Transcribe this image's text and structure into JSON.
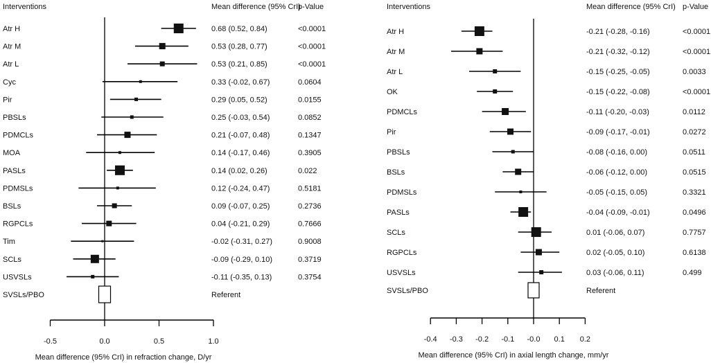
{
  "chart_data": [
    {
      "type": "forest",
      "headers": {
        "label": "Interventions",
        "estimate": "Mean difference (95% CrI)",
        "p": "p-Value"
      },
      "xlabel": "Mean difference (95% CrI) in refraction change, D/yr",
      "xlim": [
        -0.5,
        1.0
      ],
      "ticks": [
        "-0.5",
        "0.0",
        "0.5",
        "1.0"
      ],
      "tick_values": [
        -0.5,
        0.0,
        0.5,
        1.0
      ],
      "rows": [
        {
          "label": "Atr H",
          "mean": 0.68,
          "low": 0.52,
          "high": 0.84,
          "text": "0.68 (0.52, 0.84)",
          "p": "<0.0001"
        },
        {
          "label": "Atr M",
          "mean": 0.53,
          "low": 0.28,
          "high": 0.77,
          "text": "0.53 (0.28, 0.77)",
          "p": "<0.0001"
        },
        {
          "label": "Atr L",
          "mean": 0.53,
          "low": 0.21,
          "high": 0.85,
          "text": "0.53 (0.21, 0.85)",
          "p": "<0.0001"
        },
        {
          "label": "Cyc",
          "mean": 0.33,
          "low": -0.02,
          "high": 0.67,
          "text": "0.33 (-0.02, 0.67)",
          "p": "0.0604"
        },
        {
          "label": "Pir",
          "mean": 0.29,
          "low": 0.05,
          "high": 0.52,
          "text": "0.29 (0.05, 0.52)",
          "p": "0.0155"
        },
        {
          "label": "PBSLs",
          "mean": 0.25,
          "low": -0.03,
          "high": 0.54,
          "text": "0.25 (-0.03, 0.54)",
          "p": "0.0852"
        },
        {
          "label": "PDMCLs",
          "mean": 0.21,
          "low": -0.07,
          "high": 0.48,
          "text": "0.21 (-0.07, 0.48)",
          "p": "0.1347"
        },
        {
          "label": "MOA",
          "mean": 0.14,
          "low": -0.17,
          "high": 0.46,
          "text": "0.14 (-0.17, 0.46)",
          "p": "0.3905"
        },
        {
          "label": "PASLs",
          "mean": 0.14,
          "low": 0.02,
          "high": 0.26,
          "text": "0.14 (0.02, 0.26)",
          "p": "0.022"
        },
        {
          "label": "PDMSLs",
          "mean": 0.12,
          "low": -0.24,
          "high": 0.47,
          "text": "0.12 (-0.24, 0.47)",
          "p": "0.5181"
        },
        {
          "label": "BSLs",
          "mean": 0.09,
          "low": -0.07,
          "high": 0.25,
          "text": "0.09 (-0.07, 0.25)",
          "p": "0.2736"
        },
        {
          "label": "RGPCLs",
          "mean": 0.04,
          "low": -0.21,
          "high": 0.29,
          "text": "0.04 (-0.21, 0.29)",
          "p": "0.7666"
        },
        {
          "label": "Tim",
          "mean": -0.02,
          "low": -0.31,
          "high": 0.27,
          "text": "-0.02 (-0.31, 0.27)",
          "p": "0.9008"
        },
        {
          "label": "SCLs",
          "mean": -0.09,
          "low": -0.29,
          "high": 0.1,
          "text": "-0.09 (-0.29, 0.10)",
          "p": "0.3719"
        },
        {
          "label": "USVSLs",
          "mean": -0.11,
          "low": -0.35,
          "high": 0.13,
          "text": "-0.11 (-0.35, 0.13)",
          "p": "0.3754"
        }
      ],
      "reference": {
        "label": "SVSLs/PBO",
        "text": "Referent"
      }
    },
    {
      "type": "forest",
      "headers": {
        "label": "Interventions",
        "estimate": "Mean difference (95% CrI)",
        "p": "p-Value"
      },
      "xlabel": "Mean difference (95% CrI) in axial length change, mm/yr",
      "xlim": [
        -0.4,
        0.2
      ],
      "ticks": [
        "-0.4",
        "-0.3",
        "-0.2",
        "-0.1",
        "-0.0",
        "0.1",
        "0.2"
      ],
      "tick_values": [
        -0.4,
        -0.3,
        -0.2,
        -0.1,
        0.0,
        0.1,
        0.2
      ],
      "rows": [
        {
          "label": "Atr H",
          "mean": -0.21,
          "low": -0.28,
          "high": -0.16,
          "text": "-0.21 (-0.28, -0.16)",
          "p": "<0.0001"
        },
        {
          "label": "Atr M",
          "mean": -0.21,
          "low": -0.32,
          "high": -0.12,
          "text": "-0.21 (-0.32, -0.12)",
          "p": "<0.0001"
        },
        {
          "label": "Atr L",
          "mean": -0.15,
          "low": -0.25,
          "high": -0.05,
          "text": "-0.15 (-0.25, -0.05)",
          "p": "0.0033"
        },
        {
          "label": "OK",
          "mean": -0.15,
          "low": -0.22,
          "high": -0.08,
          "text": "-0.15 (-0.22, -0.08)",
          "p": "<0.0001"
        },
        {
          "label": "PDMCLs",
          "mean": -0.11,
          "low": -0.2,
          "high": -0.03,
          "text": "-0.11 (-0.20, -0.03)",
          "p": "0.0112"
        },
        {
          "label": "Pir",
          "mean": -0.09,
          "low": -0.17,
          "high": -0.01,
          "text": "-0.09 (-0.17, -0.01)",
          "p": "0.0272"
        },
        {
          "label": "PBSLs",
          "mean": -0.08,
          "low": -0.16,
          "high": 0.0,
          "text": "-0.08 (-0.16, 0.00)",
          "p": "0.0511"
        },
        {
          "label": "BSLs",
          "mean": -0.06,
          "low": -0.12,
          "high": 0.0,
          "text": "-0.06 (-0.12, 0.00)",
          "p": "0.0515"
        },
        {
          "label": "PDMSLs",
          "mean": -0.05,
          "low": -0.15,
          "high": 0.05,
          "text": "-0.05 (-0.15, 0.05)",
          "p": "0.3321"
        },
        {
          "label": "PASLs",
          "mean": -0.04,
          "low": -0.09,
          "high": -0.01,
          "text": "-0.04 (-0.09, -0.01)",
          "p": "0.0496"
        },
        {
          "label": "SCLs",
          "mean": 0.01,
          "low": -0.06,
          "high": 0.07,
          "text": "0.01 (-0.06, 0.07)",
          "p": "0.7757"
        },
        {
          "label": "RGPCLs",
          "mean": 0.02,
          "low": -0.05,
          "high": 0.1,
          "text": "0.02 (-0.05, 0.10)",
          "p": "0.6138"
        },
        {
          "label": "USVSLs",
          "mean": 0.03,
          "low": -0.06,
          "high": 0.11,
          "text": "0.03 (-0.06, 0.11)",
          "p": "0.499"
        }
      ],
      "reference": {
        "label": "SVSLs/PBO",
        "text": "Referent"
      }
    }
  ]
}
